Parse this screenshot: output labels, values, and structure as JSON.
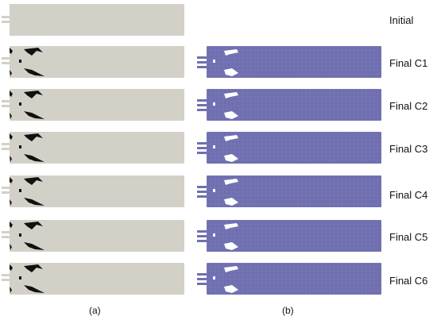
{
  "rows": [
    {
      "label": "Initial"
    },
    {
      "label": "Final C1"
    },
    {
      "label": "Final C2"
    },
    {
      "label": "Final C3"
    },
    {
      "label": "Final C4"
    },
    {
      "label": "Final C5"
    },
    {
      "label": "Final C6"
    }
  ],
  "panels": {
    "a": "(a)",
    "b": "(b)"
  },
  "colors": {
    "domain_gray": "#d3d0c8",
    "domain_blue": "#6f6fb0",
    "grid_blue": "#8585c2",
    "void_white": "#ffffff",
    "material_black": "#111111"
  }
}
